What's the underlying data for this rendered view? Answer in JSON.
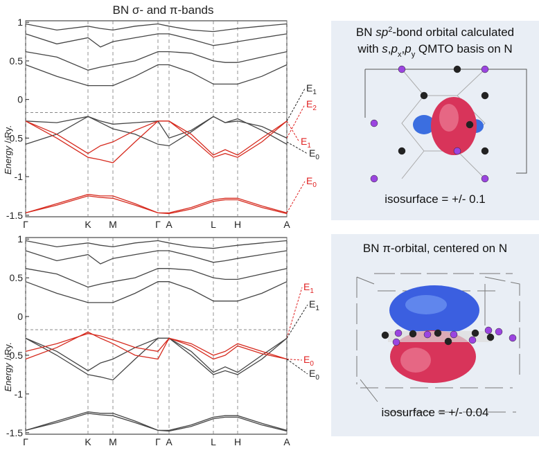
{
  "chart_data": [
    {
      "type": "line",
      "title": "BN σ- and π-bands",
      "ylabel": "Energy",
      "ylabel_unit": "/ Ry.",
      "x": [
        0,
        0.45,
        0.9,
        1.08,
        1.26,
        1.58,
        1.91,
        2.07,
        2.39,
        2.71,
        2.88,
        3.06,
        3.41,
        3.77
      ],
      "xlim": [
        0,
        3.77
      ],
      "xticks": [
        {
          "value": 0,
          "label": "Γ"
        },
        {
          "value": 0.9,
          "label": "K"
        },
        {
          "value": 1.26,
          "label": "M"
        },
        {
          "value": 1.91,
          "label": "Γ"
        },
        {
          "value": 2.07,
          "label": "A"
        },
        {
          "value": 2.71,
          "label": "L"
        },
        {
          "value": 3.06,
          "label": "H"
        },
        {
          "value": 3.77,
          "label": "A"
        }
      ],
      "ylim": [
        -1.52,
        1.02
      ],
      "yticks": [
        -1.5,
        -1,
        -0.5,
        0,
        0.5,
        1
      ],
      "hline": -0.17,
      "series": [
        {
          "color": "#444444",
          "values": [
            0.62,
            0.55,
            0.38,
            0.42,
            0.45,
            0.5,
            0.62,
            0.62,
            0.6,
            0.5,
            0.48,
            0.48,
            0.55,
            0.62
          ]
        },
        {
          "color": "#444444",
          "values": [
            0.45,
            0.3,
            0.18,
            0.18,
            0.18,
            0.3,
            0.45,
            0.45,
            0.35,
            0.2,
            0.2,
            0.2,
            0.3,
            0.45
          ]
        },
        {
          "color": "#444444",
          "values": [
            0.85,
            0.72,
            0.8,
            0.68,
            0.75,
            0.8,
            0.85,
            0.85,
            0.78,
            0.7,
            0.72,
            0.75,
            0.8,
            0.85
          ]
        },
        {
          "color": "#444444",
          "values": [
            0.98,
            0.9,
            0.95,
            0.92,
            0.9,
            0.95,
            0.98,
            0.95,
            0.9,
            0.88,
            0.9,
            0.92,
            0.95,
            0.98
          ]
        },
        {
          "color": "#444444",
          "values": [
            -0.58,
            -0.45,
            -0.22,
            -0.3,
            -0.38,
            -0.45,
            -0.58,
            -0.6,
            -0.42,
            -0.22,
            -0.3,
            -0.25,
            -0.4,
            -0.58
          ]
        },
        {
          "color": "#444444",
          "values": [
            -0.28,
            -0.3,
            -0.22,
            -0.28,
            -0.32,
            -0.3,
            -0.28,
            -0.5,
            -0.4,
            -0.22,
            -0.3,
            -0.28,
            -0.35,
            -0.5
          ]
        },
        {
          "color": "#d62a1e",
          "values": [
            -0.28,
            -0.45,
            -0.7,
            -0.6,
            -0.55,
            -0.4,
            -0.28,
            -0.28,
            -0.45,
            -0.72,
            -0.65,
            -0.72,
            -0.5,
            -0.28
          ]
        },
        {
          "color": "#d62a1e",
          "values": [
            -0.28,
            -0.5,
            -0.75,
            -0.78,
            -0.82,
            -0.55,
            -0.28,
            -0.28,
            -0.5,
            -0.75,
            -0.7,
            -0.75,
            -0.55,
            -0.28
          ]
        },
        {
          "color": "#d62a1e",
          "values": [
            -1.47,
            -1.35,
            -1.23,
            -1.25,
            -1.25,
            -1.35,
            -1.47,
            -1.47,
            -1.4,
            -1.3,
            -1.28,
            -1.28,
            -1.38,
            -1.47
          ]
        },
        {
          "color": "#d62a1e",
          "values": [
            -1.47,
            -1.37,
            -1.25,
            -1.27,
            -1.28,
            -1.37,
            -1.47,
            -1.48,
            -1.42,
            -1.32,
            -1.3,
            -1.3,
            -1.4,
            -1.48
          ]
        }
      ],
      "annotations": [
        {
          "label": "E",
          "index": "1",
          "color": "#222222"
        },
        {
          "label": "E",
          "index": "2",
          "color": "#e02020"
        },
        {
          "label": "E",
          "index": "1",
          "color": "#e02020"
        },
        {
          "label": "E",
          "index": "0",
          "color": "#222222"
        },
        {
          "label": "E",
          "index": "0",
          "color": "#e02020"
        }
      ]
    },
    {
      "type": "line",
      "ylabel": "Energy",
      "ylabel_unit": "/ Ry.",
      "x": [
        0,
        0.45,
        0.9,
        1.08,
        1.26,
        1.58,
        1.91,
        2.07,
        2.39,
        2.71,
        2.88,
        3.06,
        3.41,
        3.77
      ],
      "xlim": [
        0,
        3.77
      ],
      "xticks": [
        {
          "value": 0,
          "label": "Γ"
        },
        {
          "value": 0.9,
          "label": "K"
        },
        {
          "value": 1.26,
          "label": "M"
        },
        {
          "value": 1.91,
          "label": "Γ"
        },
        {
          "value": 2.07,
          "label": "A"
        },
        {
          "value": 2.71,
          "label": "L"
        },
        {
          "value": 3.06,
          "label": "H"
        },
        {
          "value": 3.77,
          "label": "A"
        }
      ],
      "ylim": [
        -1.52,
        1.02
      ],
      "yticks": [
        -1.5,
        -1,
        -0.5,
        0,
        0.5,
        1
      ],
      "hline": -0.17,
      "series": [
        {
          "color": "#444444",
          "values": [
            0.62,
            0.55,
            0.38,
            0.42,
            0.45,
            0.5,
            0.62,
            0.62,
            0.6,
            0.5,
            0.48,
            0.48,
            0.55,
            0.62
          ]
        },
        {
          "color": "#444444",
          "values": [
            0.45,
            0.3,
            0.18,
            0.18,
            0.18,
            0.3,
            0.45,
            0.45,
            0.35,
            0.2,
            0.2,
            0.2,
            0.3,
            0.45
          ]
        },
        {
          "color": "#444444",
          "values": [
            0.85,
            0.72,
            0.8,
            0.68,
            0.75,
            0.8,
            0.85,
            0.85,
            0.78,
            0.7,
            0.72,
            0.75,
            0.8,
            0.85
          ]
        },
        {
          "color": "#444444",
          "values": [
            0.98,
            0.9,
            0.95,
            0.92,
            0.9,
            0.95,
            0.98,
            0.95,
            0.9,
            0.88,
            0.9,
            0.92,
            0.95,
            0.98
          ]
        },
        {
          "color": "#444444",
          "values": [
            -0.28,
            -0.5,
            -0.75,
            -0.78,
            -0.82,
            -0.55,
            -0.28,
            -0.28,
            -0.5,
            -0.75,
            -0.7,
            -0.75,
            -0.55,
            -0.28
          ]
        },
        {
          "color": "#444444",
          "values": [
            -0.28,
            -0.45,
            -0.7,
            -0.6,
            -0.55,
            -0.4,
            -0.28,
            -0.28,
            -0.45,
            -0.72,
            -0.65,
            -0.72,
            -0.5,
            -0.28
          ]
        },
        {
          "color": "#444444",
          "values": [
            -1.47,
            -1.35,
            -1.23,
            -1.25,
            -1.25,
            -1.35,
            -1.47,
            -1.47,
            -1.4,
            -1.3,
            -1.28,
            -1.28,
            -1.38,
            -1.47
          ]
        },
        {
          "color": "#444444",
          "values": [
            -1.47,
            -1.37,
            -1.25,
            -1.27,
            -1.28,
            -1.37,
            -1.47,
            -1.48,
            -1.42,
            -1.32,
            -1.3,
            -1.3,
            -1.4,
            -1.48
          ]
        },
        {
          "color": "#d62a1e",
          "values": [
            -0.45,
            -0.35,
            -0.22,
            -0.25,
            -0.3,
            -0.4,
            -0.45,
            -0.28,
            -0.35,
            -0.5,
            -0.45,
            -0.35,
            -0.45,
            -0.55
          ]
        },
        {
          "color": "#d62a1e",
          "values": [
            -0.55,
            -0.4,
            -0.2,
            -0.28,
            -0.35,
            -0.5,
            -0.55,
            -0.28,
            -0.38,
            -0.55,
            -0.5,
            -0.38,
            -0.48,
            -0.55
          ]
        }
      ],
      "annotations": [
        {
          "label": "E",
          "index": "1",
          "color": "#e02020"
        },
        {
          "label": "E",
          "index": "1",
          "color": "#222222"
        },
        {
          "label": "E",
          "index": "0",
          "color": "#e02020"
        },
        {
          "label": "E",
          "index": "0",
          "color": "#222222"
        }
      ]
    }
  ],
  "panels": [
    {
      "title_lines": [
        [
          {
            "text": "BN ",
            "style": "normal"
          },
          {
            "text": "sp",
            "style": "italic"
          },
          {
            "text": "2",
            "style": "sup"
          },
          {
            "text": "-bond orbital calculated",
            "style": "normal"
          }
        ],
        [
          {
            "text": "with ",
            "style": "normal"
          },
          {
            "text": "s",
            "style": "italic"
          },
          {
            "text": ",",
            "style": "normal"
          },
          {
            "text": "p",
            "style": "italic"
          },
          {
            "text": "x",
            "style": "sub"
          },
          {
            "text": ",",
            "style": "normal"
          },
          {
            "text": "p",
            "style": "italic"
          },
          {
            "text": "y",
            "style": "sub"
          },
          {
            "text": " QMTO basis on N",
            "style": "normal"
          }
        ]
      ],
      "caption": "isosurface = +/- 0.1"
    },
    {
      "title_lines": [
        [
          {
            "text": "BN π-orbital, centered on N",
            "style": "normal"
          }
        ]
      ],
      "caption": "isosurface = +/- 0.04"
    }
  ]
}
